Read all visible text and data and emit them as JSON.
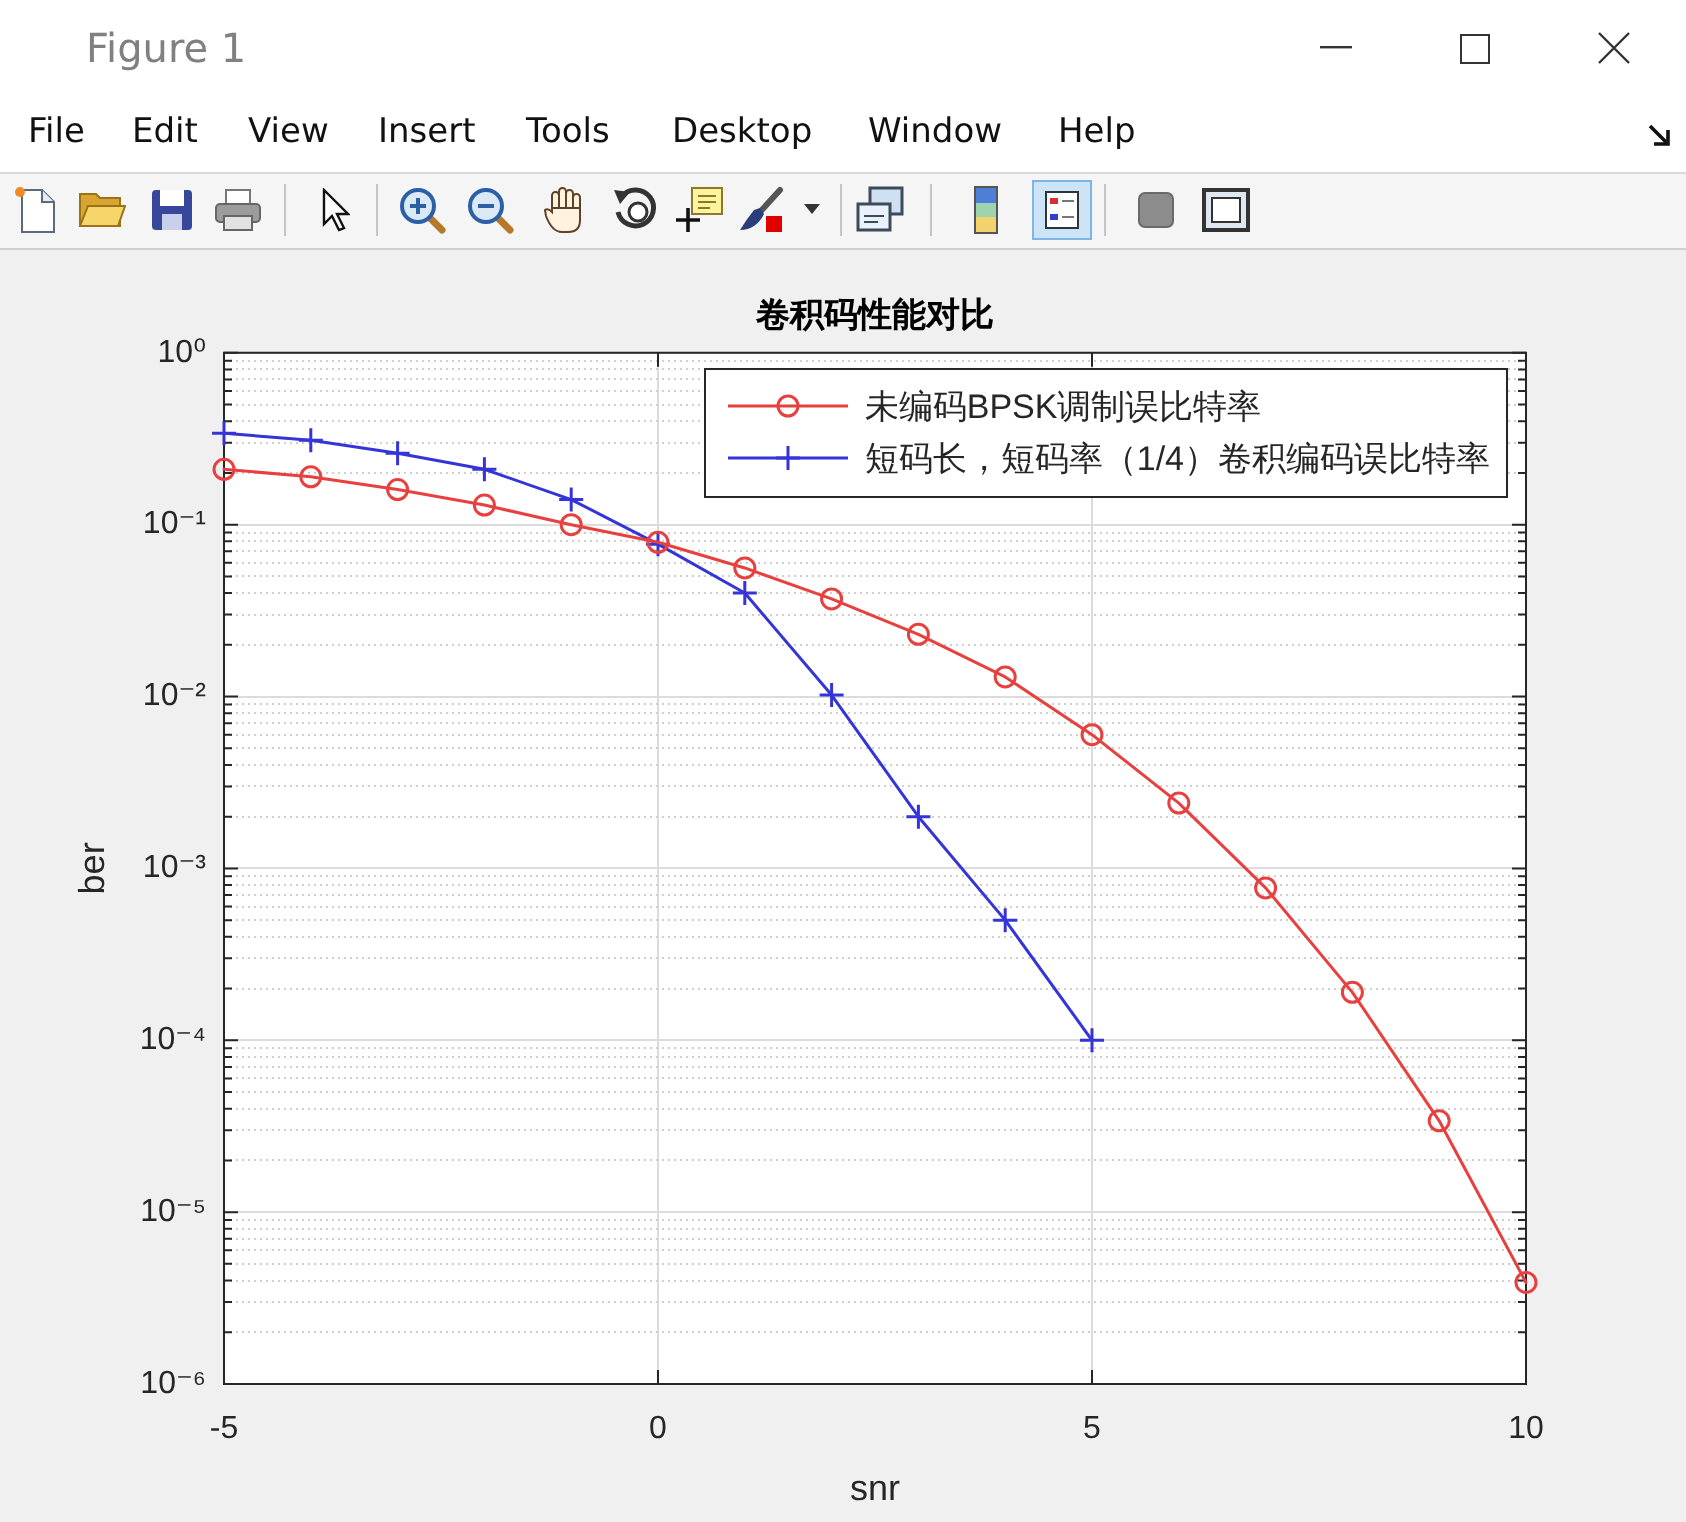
{
  "chart_data": {
    "type": "line",
    "title": "卷积码性能对比",
    "xlabel": "snr",
    "ylabel": "ber",
    "annotations": [
      "Figure 1",
      "File",
      "Edit",
      "View",
      "Insert",
      "Tools",
      "Desktop",
      "Window",
      "Help"
    ],
    "series": [
      {
        "name": "未编码BPSK调制误比特率",
        "color": "#e8403f",
        "marker": "circle",
        "x": [
          -5,
          -4,
          -3,
          -2,
          -1,
          0,
          1,
          2,
          3,
          4,
          5,
          6,
          7,
          8,
          9,
          10
        ],
        "values": [
          0.21,
          0.19,
          0.16,
          0.13,
          0.1,
          0.079,
          0.056,
          0.037,
          0.023,
          0.013,
          0.006,
          0.0024,
          0.00077,
          0.00019,
          3.4e-05,
          3.9e-06
        ]
      },
      {
        "name": "短码长，短码率（1/4）卷积编码误比特率",
        "color": "#3434d8",
        "marker": "cross",
        "x": [
          -5,
          -4,
          -3,
          -2,
          -1,
          0,
          1,
          2,
          3,
          4,
          5
        ],
        "values": [
          0.34,
          0.31,
          0.26,
          0.21,
          0.14,
          0.077,
          0.04,
          0.0102,
          0.002,
          0.0005,
          0.0001
        ]
      }
    ],
    "xlim": [
      -5,
      10
    ],
    "xticks": [
      -5,
      0,
      5,
      10
    ],
    "ylim": [
      1e-06,
      1
    ],
    "yticks": [
      {
        "value": 1e-06,
        "label": "10⁻⁶"
      },
      {
        "value": 2e-06,
        "label": null
      },
      {
        "value": 3e-06,
        "label": null
      },
      {
        "value": 4e-06,
        "label": null
      },
      {
        "value": 5e-06,
        "label": null
      },
      {
        "value": 6e-06,
        "label": null
      },
      {
        "value": 7e-06,
        "label": null
      },
      {
        "value": 8e-06,
        "label": null
      },
      {
        "value": 9e-06,
        "label": null
      },
      {
        "value": 1e-05,
        "label": "10⁻⁵"
      },
      {
        "value": 2e-05,
        "label": null
      },
      {
        "value": 3e-05,
        "label": null
      },
      {
        "value": 4e-05,
        "label": null
      },
      {
        "value": 5e-05,
        "label": null
      },
      {
        "value": 6e-05,
        "label": null
      },
      {
        "value": 7e-05,
        "label": null
      },
      {
        "value": 8e-05,
        "label": null
      },
      {
        "value": 9e-05,
        "label": null
      },
      {
        "value": 0.0001,
        "label": "10⁻⁴"
      },
      {
        "value": 0.0002,
        "label": null
      },
      {
        "value": 0.0003,
        "label": null
      },
      {
        "value": 0.0004,
        "label": null
      },
      {
        "value": 0.0005,
        "label": null
      },
      {
        "value": 0.0006,
        "label": null
      },
      {
        "value": 0.0007,
        "label": null
      },
      {
        "value": 0.0008,
        "label": null
      },
      {
        "value": 0.0009,
        "label": null
      },
      {
        "value": 0.001,
        "label": "10⁻³"
      },
      {
        "value": 0.002,
        "label": null
      },
      {
        "value": 0.003,
        "label": null
      },
      {
        "value": 0.004,
        "label": null
      },
      {
        "value": 0.005,
        "label": null
      },
      {
        "value": 0.006,
        "label": null
      },
      {
        "value": 0.007,
        "label": null
      },
      {
        "value": 0.008,
        "label": null
      },
      {
        "value": 0.009,
        "label": null
      },
      {
        "value": 0.01,
        "label": "10⁻²"
      },
      {
        "value": 0.02,
        "label": null
      },
      {
        "value": 0.03,
        "label": null
      },
      {
        "value": 0.04,
        "label": null
      },
      {
        "value": 0.05,
        "label": null
      },
      {
        "value": 0.06,
        "label": null
      },
      {
        "value": 0.07,
        "label": null
      },
      {
        "value": 0.08,
        "label": null
      },
      {
        "value": 0.09,
        "label": null
      },
      {
        "value": 0.1,
        "label": "10⁻¹"
      },
      {
        "value": 0.2,
        "label": null
      },
      {
        "value": 0.3,
        "label": null
      },
      {
        "value": 0.4,
        "label": null
      },
      {
        "value": 0.5,
        "label": null
      },
      {
        "value": 0.6,
        "label": null
      },
      {
        "value": 0.7,
        "label": null
      },
      {
        "value": 0.8,
        "label": null
      },
      {
        "value": 0.9,
        "label": null
      },
      {
        "value": 1,
        "label": "10⁰"
      }
    ],
    "log": "y",
    "grid": true,
    "legend": "top right"
  }
}
